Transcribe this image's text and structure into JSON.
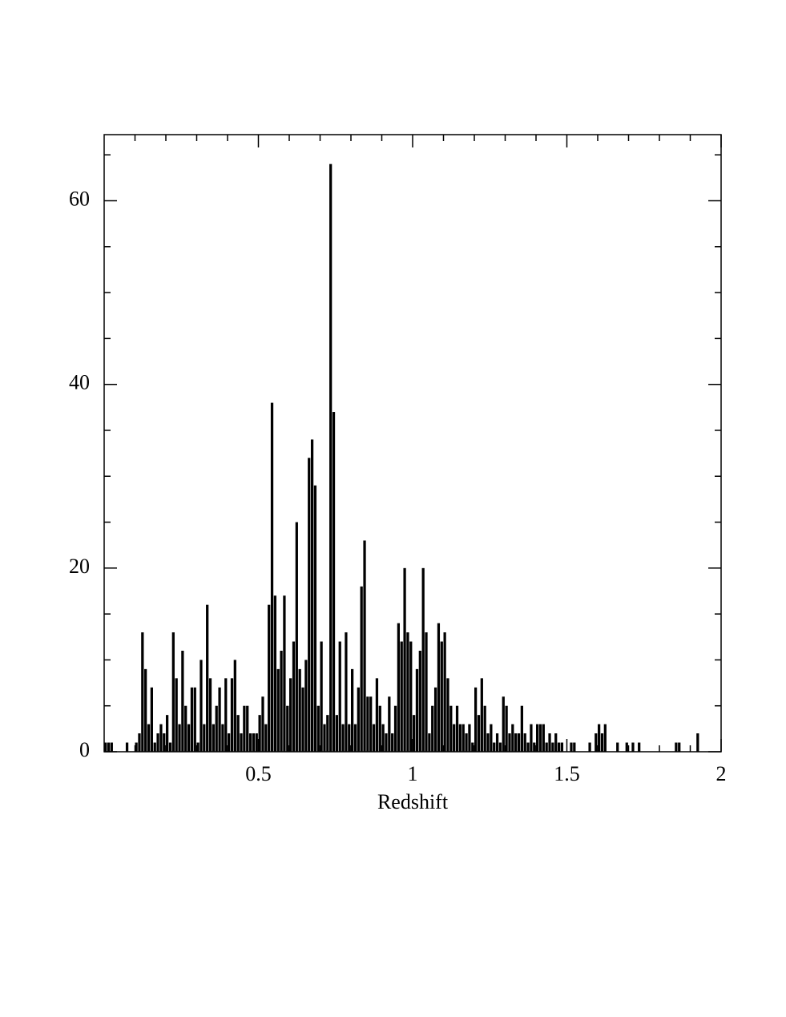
{
  "chart_data": {
    "type": "histogram",
    "x_label": "Redshift",
    "color": "#000000",
    "xlim": [
      0,
      2
    ],
    "ylim": [
      0,
      67.2
    ],
    "xticks": [
      0.5,
      1,
      1.5,
      2
    ],
    "xminorticks": [
      0.1,
      0.2,
      0.3,
      0.4,
      0.6,
      0.7,
      0.8,
      0.9,
      1.1,
      1.2,
      1.3,
      1.4,
      1.6,
      1.7,
      1.8,
      1.9
    ],
    "yticks": [
      0,
      20,
      40,
      60
    ],
    "yminorticks": [
      5,
      10,
      15,
      25,
      30,
      35,
      45,
      50,
      55,
      65
    ],
    "bins": [
      0,
      0.01,
      0.02,
      0.03,
      0.04,
      0.05,
      0.06,
      0.07,
      0.08,
      0.09,
      0.1,
      0.11,
      0.12,
      0.13,
      0.14,
      0.15,
      0.16,
      0.17,
      0.18,
      0.19,
      0.2,
      0.21,
      0.22,
      0.23,
      0.24,
      0.25,
      0.26,
      0.27,
      0.28,
      0.29,
      0.3,
      0.31,
      0.32,
      0.33,
      0.34,
      0.35,
      0.36,
      0.37,
      0.38,
      0.39,
      0.4,
      0.41,
      0.42,
      0.43,
      0.44,
      0.45,
      0.46,
      0.47,
      0.48,
      0.49,
      0.5,
      0.51,
      0.52,
      0.53,
      0.54,
      0.55,
      0.56,
      0.57,
      0.58,
      0.59,
      0.6,
      0.61,
      0.62,
      0.63,
      0.64,
      0.65,
      0.66,
      0.67,
      0.68,
      0.69,
      0.7,
      0.71,
      0.72,
      0.73,
      0.74,
      0.75,
      0.76,
      0.77,
      0.78,
      0.79,
      0.8,
      0.81,
      0.82,
      0.83,
      0.84,
      0.85,
      0.86,
      0.87,
      0.88,
      0.89,
      0.9,
      0.91,
      0.92,
      0.93,
      0.94,
      0.95,
      0.96,
      0.97,
      0.98,
      0.99,
      1,
      1.01,
      1.02,
      1.03,
      1.04,
      1.05,
      1.06,
      1.07,
      1.08,
      1.09,
      1.1,
      1.11,
      1.12,
      1.13,
      1.14,
      1.15,
      1.16,
      1.17,
      1.18,
      1.19,
      1.2,
      1.21,
      1.22,
      1.23,
      1.24,
      1.25,
      1.26,
      1.27,
      1.28,
      1.29,
      1.3,
      1.31,
      1.32,
      1.33,
      1.34,
      1.35,
      1.36,
      1.37,
      1.38,
      1.39,
      1.4,
      1.41,
      1.42,
      1.43,
      1.44,
      1.45,
      1.46,
      1.47,
      1.48,
      1.49,
      1.5,
      1.51,
      1.52,
      1.53,
      1.54,
      1.55,
      1.56,
      1.57,
      1.58,
      1.59,
      1.6,
      1.61,
      1.62,
      1.63,
      1.64,
      1.65,
      1.66,
      1.67,
      1.68,
      1.69,
      1.7,
      1.71,
      1.72,
      1.73,
      1.74,
      1.75,
      1.76,
      1.77,
      1.78,
      1.79,
      1.8,
      1.81,
      1.82,
      1.83,
      1.84,
      1.85,
      1.86,
      1.87,
      1.88,
      1.89,
      1.9,
      1.91,
      1.92,
      1.93,
      1.94,
      1.95,
      1.96,
      1.97,
      1.98,
      1.99,
      2
    ],
    "values": [
      1,
      1,
      1,
      0,
      0,
      0,
      0,
      1,
      0,
      0,
      1,
      2,
      13,
      9,
      3,
      7,
      1,
      2,
      3,
      2,
      4,
      1,
      13,
      8,
      3,
      11,
      5,
      3,
      7,
      7,
      1,
      10,
      3,
      16,
      8,
      3,
      5,
      7,
      3,
      8,
      2,
      8,
      10,
      4,
      2,
      5,
      5,
      2,
      2,
      2,
      4,
      6,
      3,
      16,
      38,
      17,
      9,
      11,
      17,
      5,
      8,
      12,
      25,
      9,
      7,
      10,
      32,
      34,
      29,
      5,
      12,
      3,
      4,
      64,
      37,
      4,
      12,
      3,
      13,
      3,
      9,
      3,
      7,
      18,
      23,
      6,
      6,
      3,
      8,
      5,
      3,
      2,
      6,
      2,
      5,
      14,
      12,
      20,
      13,
      12,
      4,
      9,
      11,
      20,
      13,
      2,
      5,
      7,
      14,
      12,
      13,
      8,
      5,
      3,
      5,
      3,
      3,
      2,
      3,
      1,
      7,
      4,
      8,
      5,
      2,
      3,
      1,
      2,
      1,
      6,
      5,
      2,
      3,
      2,
      2,
      5,
      2,
      1,
      3,
      1,
      3,
      3,
      3,
      1,
      2,
      1,
      2,
      1,
      1,
      0,
      0,
      1,
      1,
      0,
      0,
      0,
      0,
      1,
      0,
      2,
      3,
      2,
      3,
      0,
      0,
      0,
      1,
      0,
      0,
      1,
      0,
      1,
      0,
      1,
      0,
      0,
      0,
      0,
      0,
      0,
      0,
      0,
      0,
      0,
      0,
      1,
      1,
      0,
      0,
      0,
      0,
      0,
      2,
      0,
      0,
      0,
      0,
      0,
      0,
      0
    ]
  }
}
